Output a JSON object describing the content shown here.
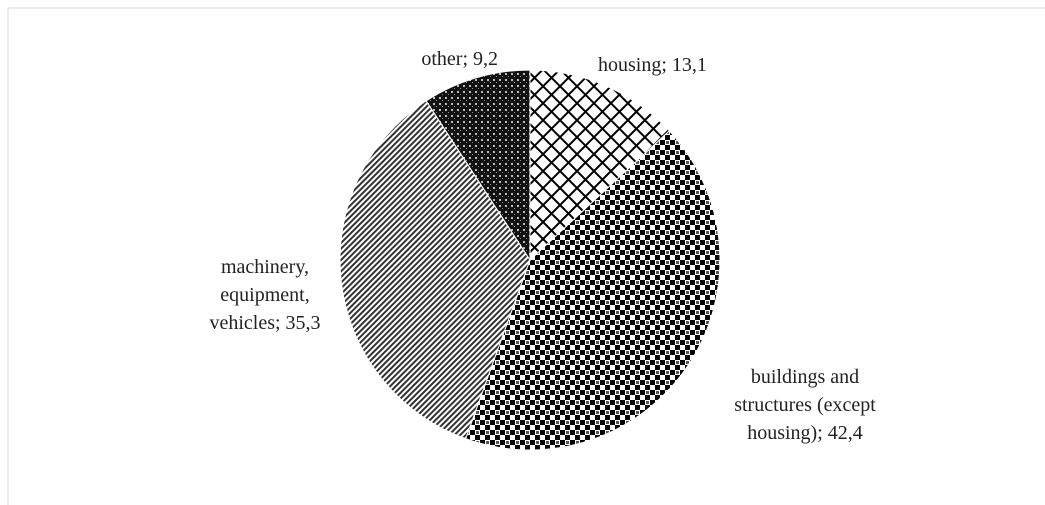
{
  "chart_data": {
    "type": "pie",
    "values": [
      13.1,
      42.4,
      35.3,
      9.2
    ],
    "value_labels": [
      "housing; 13,1",
      "buildings and structures (except housing); 42,4",
      "machinery, equipment, vehicles; 35,3",
      "other; 9,2"
    ],
    "start_angle": 90,
    "direction": "clockwise"
  }
}
